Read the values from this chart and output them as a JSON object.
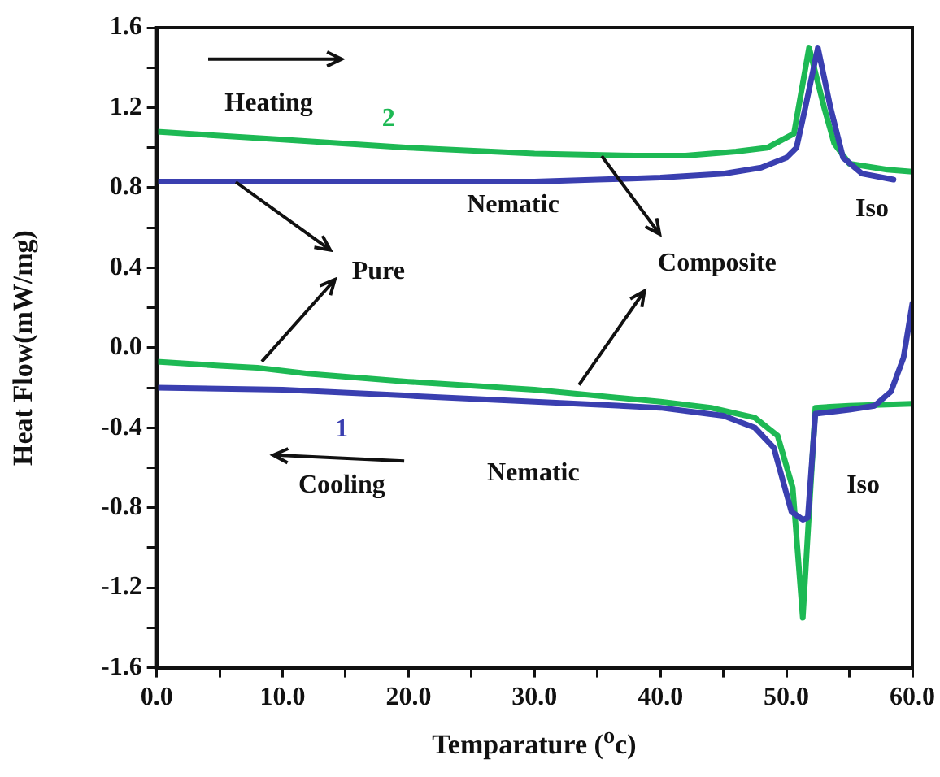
{
  "chart_data": {
    "type": "line",
    "xlabel": "Temparature ($^{o}$c)",
    "ylabel": "Heat Flow(mW/mg)",
    "xlim": [
      0,
      60
    ],
    "ylim": [
      -1.6,
      1.6
    ],
    "xticks": [
      {
        "value": 0,
        "label": "0.0"
      },
      {
        "value": 5,
        "label": null
      },
      {
        "value": 10,
        "label": "10.0"
      },
      {
        "value": 15,
        "label": null
      },
      {
        "value": 20,
        "label": "20.0"
      },
      {
        "value": 25,
        "label": null
      },
      {
        "value": 30,
        "label": "30.0"
      },
      {
        "value": 35,
        "label": null
      },
      {
        "value": 40,
        "label": "40.0"
      },
      {
        "value": 45,
        "label": null
      },
      {
        "value": 50,
        "label": "50.0"
      },
      {
        "value": 55,
        "label": null
      },
      {
        "value": 60,
        "label": "60.0"
      }
    ],
    "yticks": [
      -1.6,
      {
        "value": -1.4,
        "label": null
      },
      -1.2,
      {
        "value": -1.0,
        "label": null
      },
      -0.8,
      {
        "value": -0.6,
        "label": null
      },
      -0.4,
      {
        "value": -0.2,
        "label": null
      },
      {
        "value": 0,
        "label": "0.0"
      },
      {
        "value": 0.2,
        "label": null
      },
      0.4,
      {
        "value": 0.6,
        "label": null
      },
      0.8,
      {
        "value": 1.0,
        "label": null
      },
      1.2,
      {
        "value": 1.4,
        "label": null
      },
      1.6
    ],
    "series": [
      {
        "color": "#3a3fb0",
        "x": [
          0,
          10,
          20,
          30,
          35,
          40,
          45,
          48,
          50,
          50.8,
          51.5,
          52.5,
          53.5,
          54.5,
          56,
          58.5
        ],
        "values": [
          0.83,
          0.83,
          0.83,
          0.83,
          0.84,
          0.85,
          0.87,
          0.9,
          0.95,
          1.0,
          1.2,
          1.5,
          1.2,
          0.95,
          0.87,
          0.84
        ]
      },
      {
        "color": "#1db954",
        "x": [
          0,
          10,
          20,
          30,
          38,
          42,
          46,
          48.5,
          50.6,
          51.8,
          53,
          53.8,
          55,
          58,
          60
        ],
        "values": [
          1.08,
          1.04,
          1.0,
          0.97,
          0.96,
          0.96,
          0.98,
          1.0,
          1.07,
          1.5,
          1.2,
          1.02,
          0.92,
          0.89,
          0.88
        ]
      },
      {
        "color": "#3a3fb0",
        "x": [
          0,
          10,
          20,
          30,
          40,
          45,
          47.5,
          49,
          50.4,
          51.3,
          51.7,
          52.3,
          55,
          57,
          58.3,
          59.3,
          60
        ],
        "values": [
          -0.2,
          -0.21,
          -0.24,
          -0.27,
          -0.3,
          -0.34,
          -0.4,
          -0.5,
          -0.82,
          -0.86,
          -0.85,
          -0.33,
          -0.31,
          -0.29,
          -0.22,
          -0.05,
          0.22
        ]
      },
      {
        "color": "#1db954",
        "x": [
          0,
          5,
          8,
          12,
          20,
          30,
          40,
          44,
          47.5,
          49.3,
          50.5,
          51.3,
          52.3,
          55,
          60
        ],
        "values": [
          -0.07,
          -0.09,
          -0.1,
          -0.13,
          -0.17,
          -0.21,
          -0.27,
          -0.3,
          -0.35,
          -0.44,
          -0.7,
          -1.35,
          -0.3,
          -0.29,
          -0.28
        ]
      }
    ],
    "grid": false,
    "legend": false,
    "marker": "none",
    "line_style": "solid",
    "annotations": [
      "Heating",
      "2",
      "Nematic",
      "Iso",
      {
        "text": "Pure",
        "x": 6.3,
        "y": 0.83
      },
      {
        "text": "Composite",
        "x": 35.4,
        "y": 0.96
      },
      "1",
      "Cooling",
      "Nematic",
      "Iso"
    ]
  }
}
